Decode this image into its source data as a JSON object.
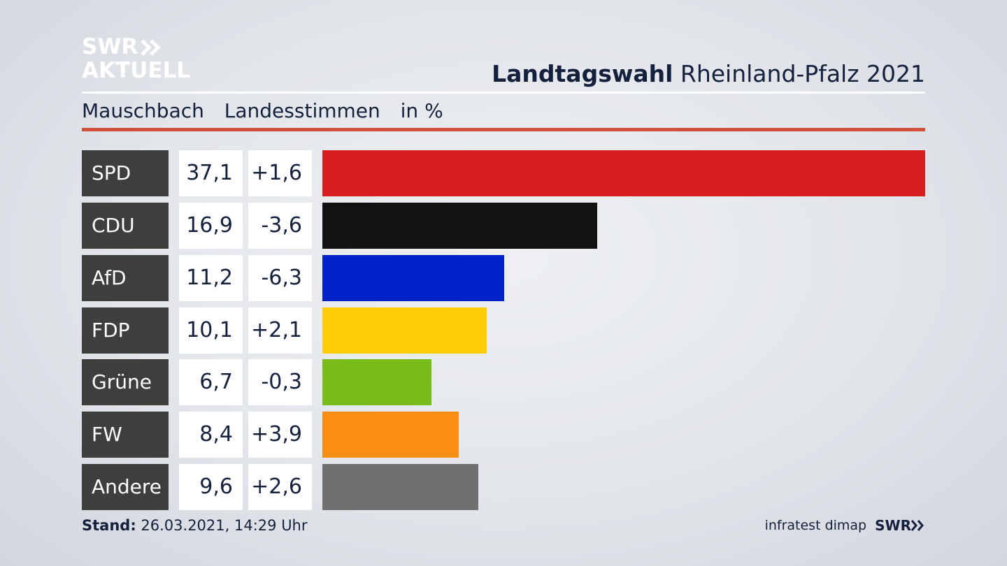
{
  "brand": {
    "line1": "SWR",
    "line2": "AKTUELL"
  },
  "headline": {
    "bold": "Landtagswahl",
    "rest": "Rheinland-Pfalz 2021"
  },
  "subhead": {
    "place": "Mauschbach",
    "type": "Landesstimmen",
    "unit": "in %"
  },
  "colors": {
    "accent_rule": "#d1503a",
    "label_bg": "#3e3e3c"
  },
  "chart_data": {
    "type": "bar",
    "orientation": "horizontal",
    "categories": [
      "SPD",
      "CDU",
      "AfD",
      "FDP",
      "Grüne",
      "FW",
      "Andere"
    ],
    "values": [
      37.1,
      16.9,
      11.2,
      10.1,
      6.7,
      8.4,
      9.6
    ],
    "values_text": [
      "37,1",
      "16,9",
      "11,2",
      "10,1",
      "6,7",
      "8,4",
      "9,6"
    ],
    "diff_text": [
      "+1,6",
      "-3,6",
      "-6,3",
      "+2,1",
      "-0,3",
      "+3,9",
      "+2,6"
    ],
    "colors": [
      "#d71f1f",
      "#121212",
      "#0021c8",
      "#fdcd08",
      "#78bc1b",
      "#fe8d16",
      "#707070"
    ],
    "xlim": [
      0,
      37.1
    ],
    "grid": false
  },
  "footer": {
    "stand_label": "Stand:",
    "stand_value": "26.03.2021, 14:29 Uhr",
    "source": "infratest dimap",
    "source_brand": "SWR"
  }
}
